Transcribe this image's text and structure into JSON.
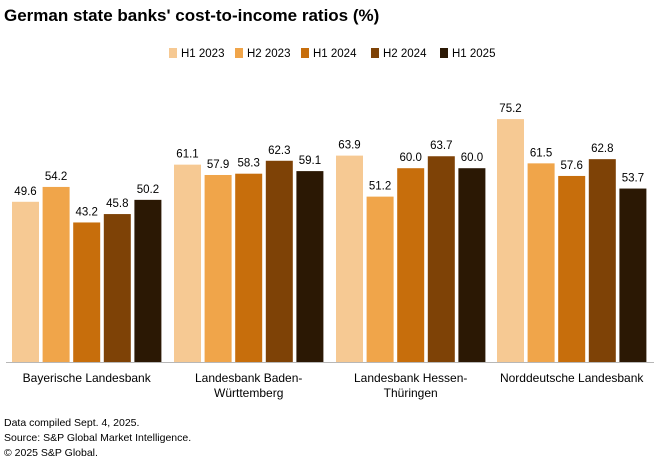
{
  "chart_data": {
    "type": "bar",
    "title": "German state banks' cost-to-income ratios (%)",
    "categories": [
      [
        "Bayerische Landesbank"
      ],
      [
        "Landesbank Baden-",
        "Württemberg"
      ],
      [
        "Landesbank Hessen-",
        "Thüringen"
      ],
      [
        "Norddeutsche Landesbank"
      ]
    ],
    "series": [
      {
        "name": "H1 2023",
        "color": "#f6c993",
        "values": [
          49.6,
          61.1,
          63.9,
          75.2
        ],
        "labels": [
          "49.6",
          "61.1",
          "63.9",
          "75.2"
        ]
      },
      {
        "name": "H2 2023",
        "color": "#f0a54a",
        "values": [
          54.2,
          57.9,
          51.2,
          61.5
        ],
        "labels": [
          "54.2",
          "57.9",
          "51.2",
          "61.5"
        ]
      },
      {
        "name": "H1 2024",
        "color": "#c76e0c",
        "values": [
          43.2,
          58.3,
          60.0,
          57.6
        ],
        "labels": [
          "43.2",
          "58.3",
          "60.0",
          "57.6"
        ]
      },
      {
        "name": "H2 2024",
        "color": "#7e4206",
        "values": [
          45.8,
          62.3,
          63.7,
          62.8
        ],
        "labels": [
          "45.8",
          "62.3",
          "63.7",
          "62.8"
        ]
      },
      {
        "name": "H1 2025",
        "color": "#2b1804",
        "values": [
          50.2,
          59.1,
          60.0,
          53.7
        ],
        "labels": [
          "50.2",
          "59.1",
          "60.0",
          "53.7"
        ]
      }
    ],
    "xlabel": "",
    "ylabel": "",
    "ylim": [
      0,
      80
    ],
    "grid": false,
    "legend": "top-center"
  },
  "footer": {
    "line1": "Data compiled Sept. 4, 2025.",
    "line2": "Source: S&P Global Market Intelligence.",
    "line3": "© 2025 S&P Global."
  }
}
